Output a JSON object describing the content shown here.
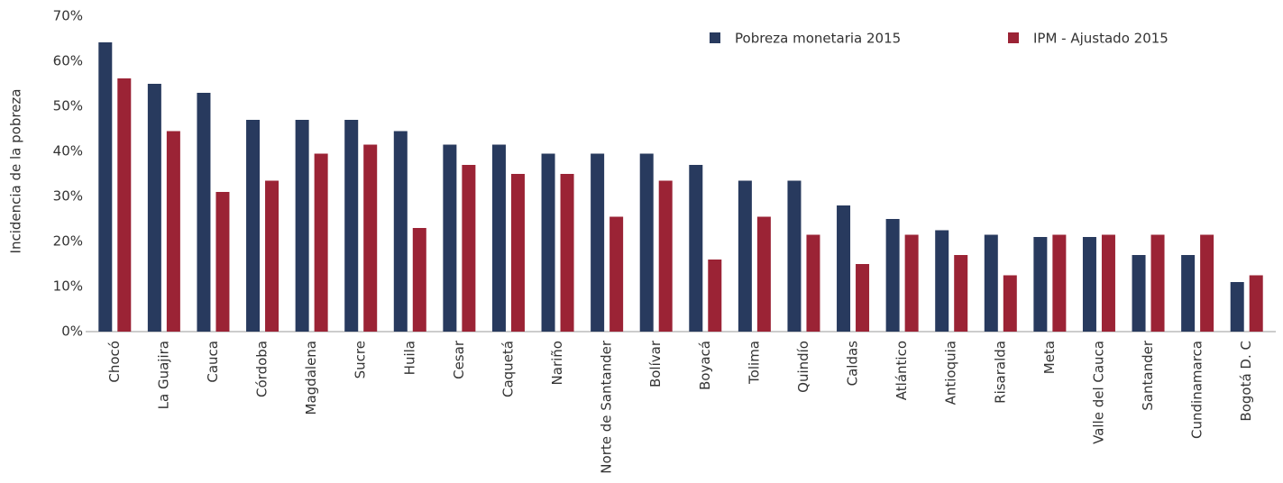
{
  "chart_data": {
    "type": "bar",
    "y_label": "Incidencia de la pobreza",
    "categories": [
      "Chocó",
      "La Guajira",
      "Cauca",
      "Córdoba",
      "Magdalena",
      "Sucre",
      "Huila",
      "Cesar",
      "Caquetá",
      "Nariño",
      "Norte de Santander",
      "Bolívar",
      "Boyacá",
      "Tolima",
      "Quindío",
      "Caldas",
      "Atlántico",
      "Antioquia",
      "Risaralda",
      "Meta",
      "Valle del Cauca",
      "Santander",
      "Cundinamarca",
      "Bogotá D. C"
    ],
    "series": [
      {
        "name": "Pobreza monetaria 2015",
        "color": "#283a5e",
        "values": [
          64.2,
          55,
          53,
          47,
          47,
          47,
          44.5,
          41.5,
          41.5,
          39.5,
          39.5,
          39.5,
          37,
          33.5,
          33.5,
          28,
          25,
          22.5,
          21.5,
          21,
          21,
          17,
          17,
          11
        ]
      },
      {
        "name": "IPM - Ajustado 2015",
        "color": "#9b2335",
        "values": [
          56.2,
          44.5,
          31,
          33.5,
          39.5,
          41.5,
          23,
          37,
          35,
          35,
          25.5,
          33.5,
          16,
          25.5,
          21.5,
          15,
          21.5,
          17,
          12.5,
          21.5,
          21.5,
          21.5,
          21.5,
          12.5
        ]
      }
    ],
    "ylim": [
      0,
      70
    ],
    "yticks": [
      {
        "value": 0,
        "label": "0%"
      },
      {
        "value": 10,
        "label": "10%"
      },
      {
        "value": 20,
        "label": "20%"
      },
      {
        "value": 30,
        "label": "30%"
      },
      {
        "value": 40,
        "label": "40%"
      },
      {
        "value": 50,
        "label": "50%"
      },
      {
        "value": 60,
        "label": "60%"
      },
      {
        "value": 70,
        "label": "70%"
      }
    ],
    "grid": false,
    "legend": "top-right"
  }
}
